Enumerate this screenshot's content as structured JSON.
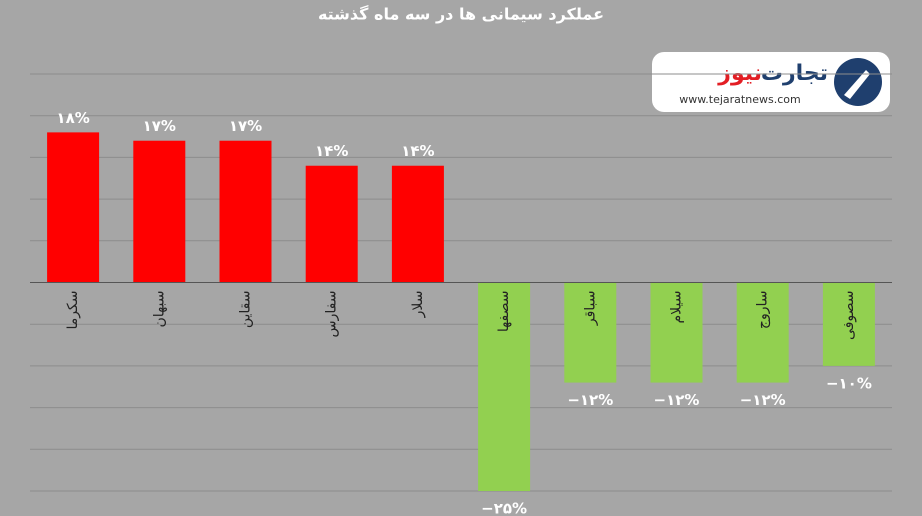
{
  "chart_data": {
    "type": "bar",
    "title": "عملکرد سیمانی ها در سه ماه گذشته",
    "categories": [
      "سکرما",
      "سبهان",
      "سقاین",
      "سفارس",
      "سلار",
      "سصفها",
      "سباقر",
      "سیلام",
      "ساروج",
      "سصوفی"
    ],
    "values": [
      18,
      17,
      17,
      14,
      14,
      -25,
      -12,
      -12,
      -12,
      -10
    ],
    "value_labels": [
      "۱۸%",
      "۱۷%",
      "۱۷%",
      "۱۴%",
      "۱۴%",
      "−۲۵%",
      "−۱۲%",
      "−۱۲%",
      "−۱۲%",
      "−۱۰%"
    ],
    "colors": [
      "#ff0000",
      "#ff0000",
      "#ff0000",
      "#ff0000",
      "#ff0000",
      "#92d050",
      "#92d050",
      "#92d050",
      "#92d050",
      "#92d050"
    ],
    "ylim": [
      -25,
      25
    ],
    "yticks": [
      -25,
      -20,
      -15,
      -10,
      -5,
      0,
      5,
      10,
      15,
      20,
      25
    ],
    "grid": true
  },
  "logo": {
    "brand_dark": "تجارت",
    "brand_red": "نیوز",
    "url": "www.tejaratnews.com"
  }
}
